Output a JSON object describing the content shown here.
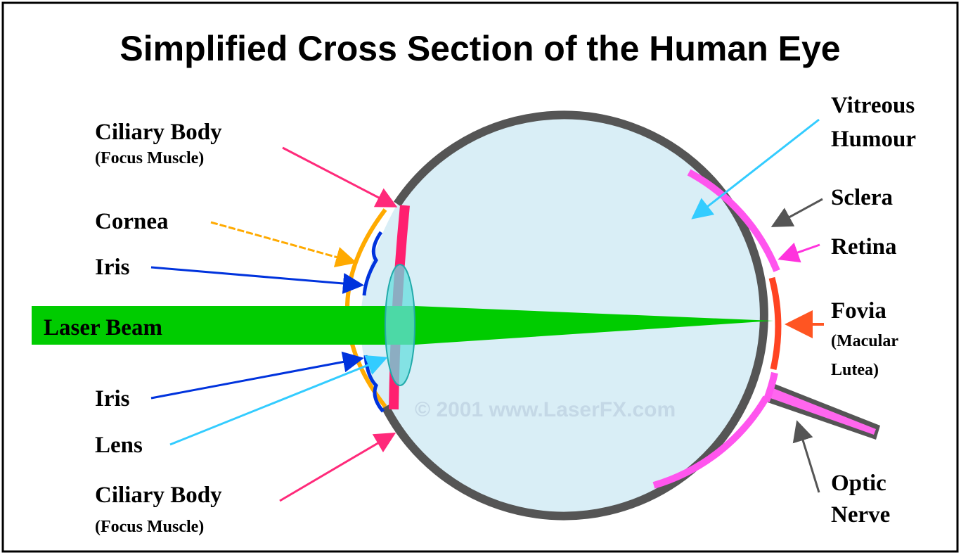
{
  "title": "Simplified Cross Section of the Human Eye",
  "watermark": "© 2001 www.LaserFX.com",
  "labels": [
    {
      "lines": [
        "Ciliary Body",
        "(Focus Muscle)"
      ]
    },
    {
      "lines": [
        "Cornea"
      ]
    },
    {
      "lines": [
        "Iris"
      ]
    },
    {
      "lines": [
        "Laser Beam"
      ]
    },
    {
      "lines": [
        "Iris"
      ]
    },
    {
      "lines": [
        "Lens"
      ]
    },
    {
      "lines": [
        "Ciliary Body",
        "(Focus Muscle)"
      ]
    },
    {
      "lines": [
        "Vitreous",
        "Humour"
      ]
    },
    {
      "lines": [
        "Sclera"
      ]
    },
    {
      "lines": [
        "Retina"
      ]
    },
    {
      "lines": [
        "Fovia",
        "(Macular",
        "Lutea)"
      ]
    },
    {
      "lines": [
        "Optic",
        "Nerve"
      ]
    }
  ]
}
